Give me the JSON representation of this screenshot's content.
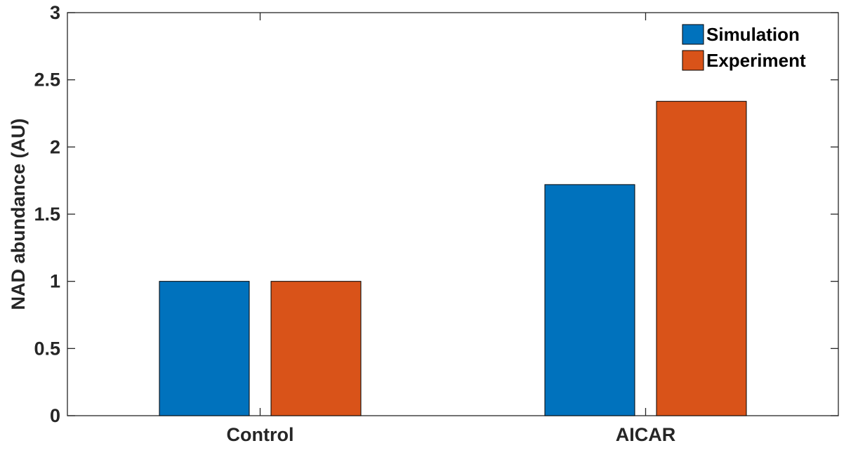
{
  "chart_data": {
    "type": "bar",
    "categories": [
      "Control",
      "AICAR"
    ],
    "series": [
      {
        "name": "Simulation",
        "color": "#0072BD",
        "values": [
          1.0,
          1.72
        ]
      },
      {
        "name": "Experiment",
        "color": "#D95319",
        "values": [
          1.0,
          2.34
        ]
      }
    ],
    "ylabel": "NAD abundance (AU)",
    "ylim": [
      0,
      3
    ],
    "yticks": [
      0,
      0.5,
      1,
      1.5,
      2,
      2.5,
      3
    ],
    "ytick_labels": [
      "0",
      "0.5",
      "1",
      "1.5",
      "2",
      "2.5",
      "3"
    ],
    "grid": false,
    "legend_position": "top-right"
  }
}
